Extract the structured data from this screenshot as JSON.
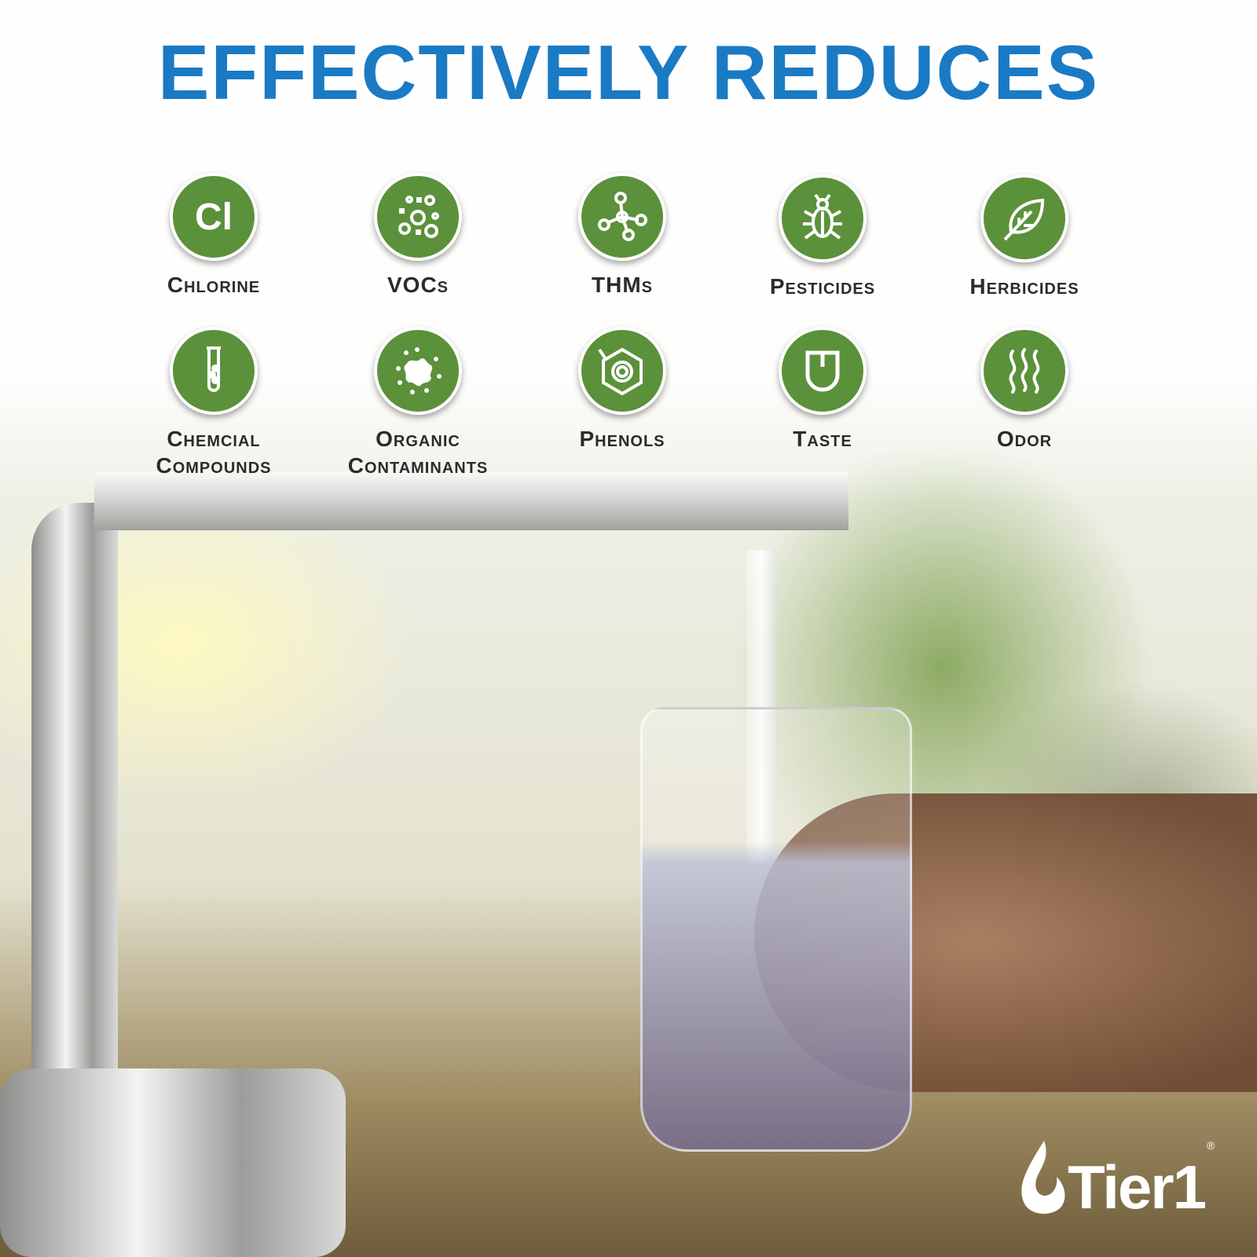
{
  "headline": "EFFECTIVELY REDUCES",
  "colors": {
    "headline": "#1a7ac4",
    "badge": "#5b913a",
    "label": "#2b2b2b"
  },
  "items": [
    {
      "label": "Chlorine",
      "icon": "chlorine-icon",
      "symbol": "Cl"
    },
    {
      "label": "VOCs",
      "icon": "vocs-bubbles-icon"
    },
    {
      "label": "THMs",
      "icon": "molecule-icon"
    },
    {
      "label": "Pesticides",
      "icon": "bug-icon"
    },
    {
      "label": "Herbicides",
      "icon": "leaf-icon"
    },
    {
      "label": "Chemcial Compounds",
      "icon": "test-tube-icon"
    },
    {
      "label": "Organic Contaminants",
      "icon": "splatter-icon"
    },
    {
      "label": "Phenols",
      "icon": "benzene-ring-icon"
    },
    {
      "label": "Taste",
      "icon": "tongue-icon"
    },
    {
      "label": "Odor",
      "icon": "odor-waves-icon"
    }
  ],
  "logo": {
    "text": "Tier1",
    "registered": "®"
  }
}
